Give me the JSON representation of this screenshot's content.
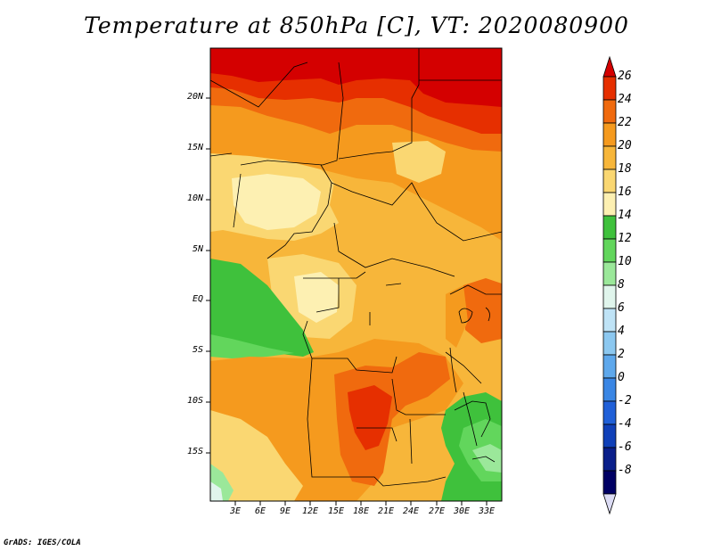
{
  "title": "Temperature at 850hPa [C], VT: 2020080900",
  "credit": "GrADS: IGES/COLA",
  "map": {
    "lat_labels": [
      "20N",
      "15N",
      "10N",
      "5N",
      "EQ",
      "5S",
      "10S",
      "15S"
    ],
    "lon_labels": [
      "3E",
      "6E",
      "9E",
      "12E",
      "15E",
      "18E",
      "21E",
      "24E",
      "27E",
      "30E",
      "33E"
    ]
  },
  "colorbar": {
    "labels": [
      "26",
      "24",
      "22",
      "20",
      "18",
      "16",
      "14",
      "12",
      "10",
      "8",
      "6",
      "4",
      "2",
      "0",
      "-2",
      "-4",
      "-6",
      "-8"
    ],
    "colors": [
      "#d40000",
      "#e62f00",
      "#f06a0e",
      "#f59a1e",
      "#f7b63a",
      "#fad772",
      "#fdf0b2",
      "#3fc13c",
      "#62d65c",
      "#9be89a",
      "#e0f5ec",
      "#bfe3f6",
      "#8cc8f0",
      "#5ea8ec",
      "#3a86e4",
      "#2060d8",
      "#1040b8",
      "#0a1f8a",
      "#000064"
    ],
    "bottom_tip_color": "#dcdcf4"
  }
}
